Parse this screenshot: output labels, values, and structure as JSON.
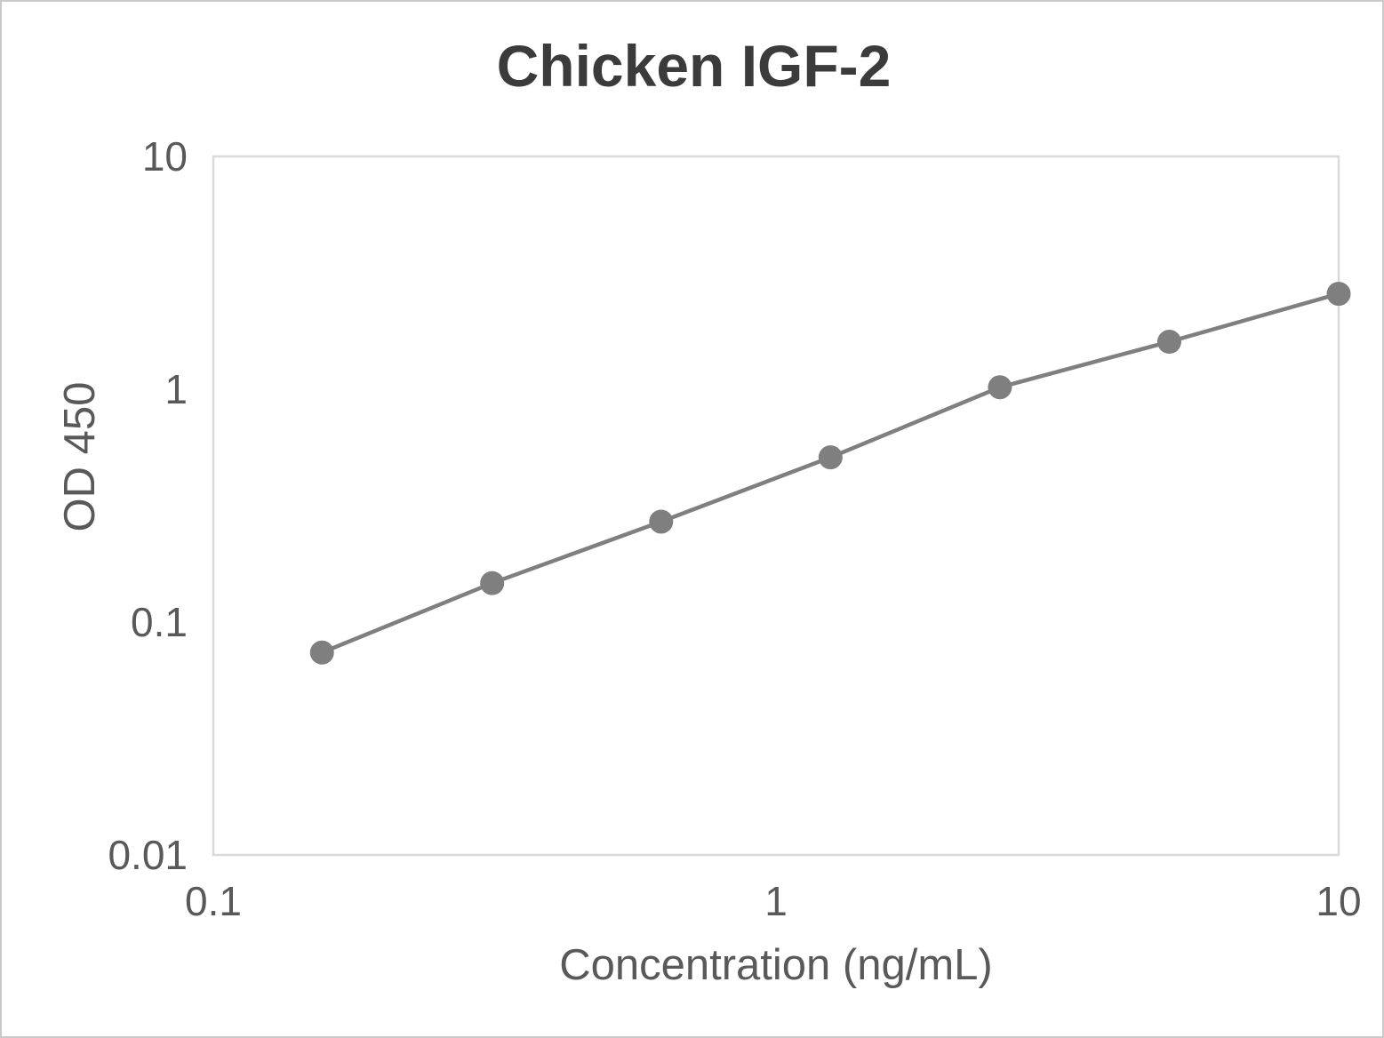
{
  "chart_data": {
    "type": "line",
    "title": "Chicken IGF-2",
    "xlabel": "Concentration (ng/mL)",
    "ylabel": "OD 450",
    "x_scale": "log",
    "y_scale": "log",
    "xlim": [
      0.1,
      10
    ],
    "ylim": [
      0.01,
      10
    ],
    "x_ticks": [
      "0.1",
      "1",
      "10"
    ],
    "y_ticks": [
      "10",
      "1",
      "0.1",
      "0.01"
    ],
    "grid": false,
    "legend": "none",
    "series": [
      {
        "x": [
          0.156,
          0.313,
          0.625,
          1.25,
          2.5,
          5,
          10
        ],
        "y": [
          0.074,
          0.147,
          0.27,
          0.51,
          1.02,
          1.6,
          2.57
        ],
        "marker": "circle",
        "color": "#7f7f7f"
      }
    ]
  },
  "colors": {
    "title_text": "#3b3b3b",
    "axis_text": "#595959",
    "series": "#7f7f7f",
    "plot_border": "#d9d9d9",
    "frame_border": "#c9c9c9"
  }
}
